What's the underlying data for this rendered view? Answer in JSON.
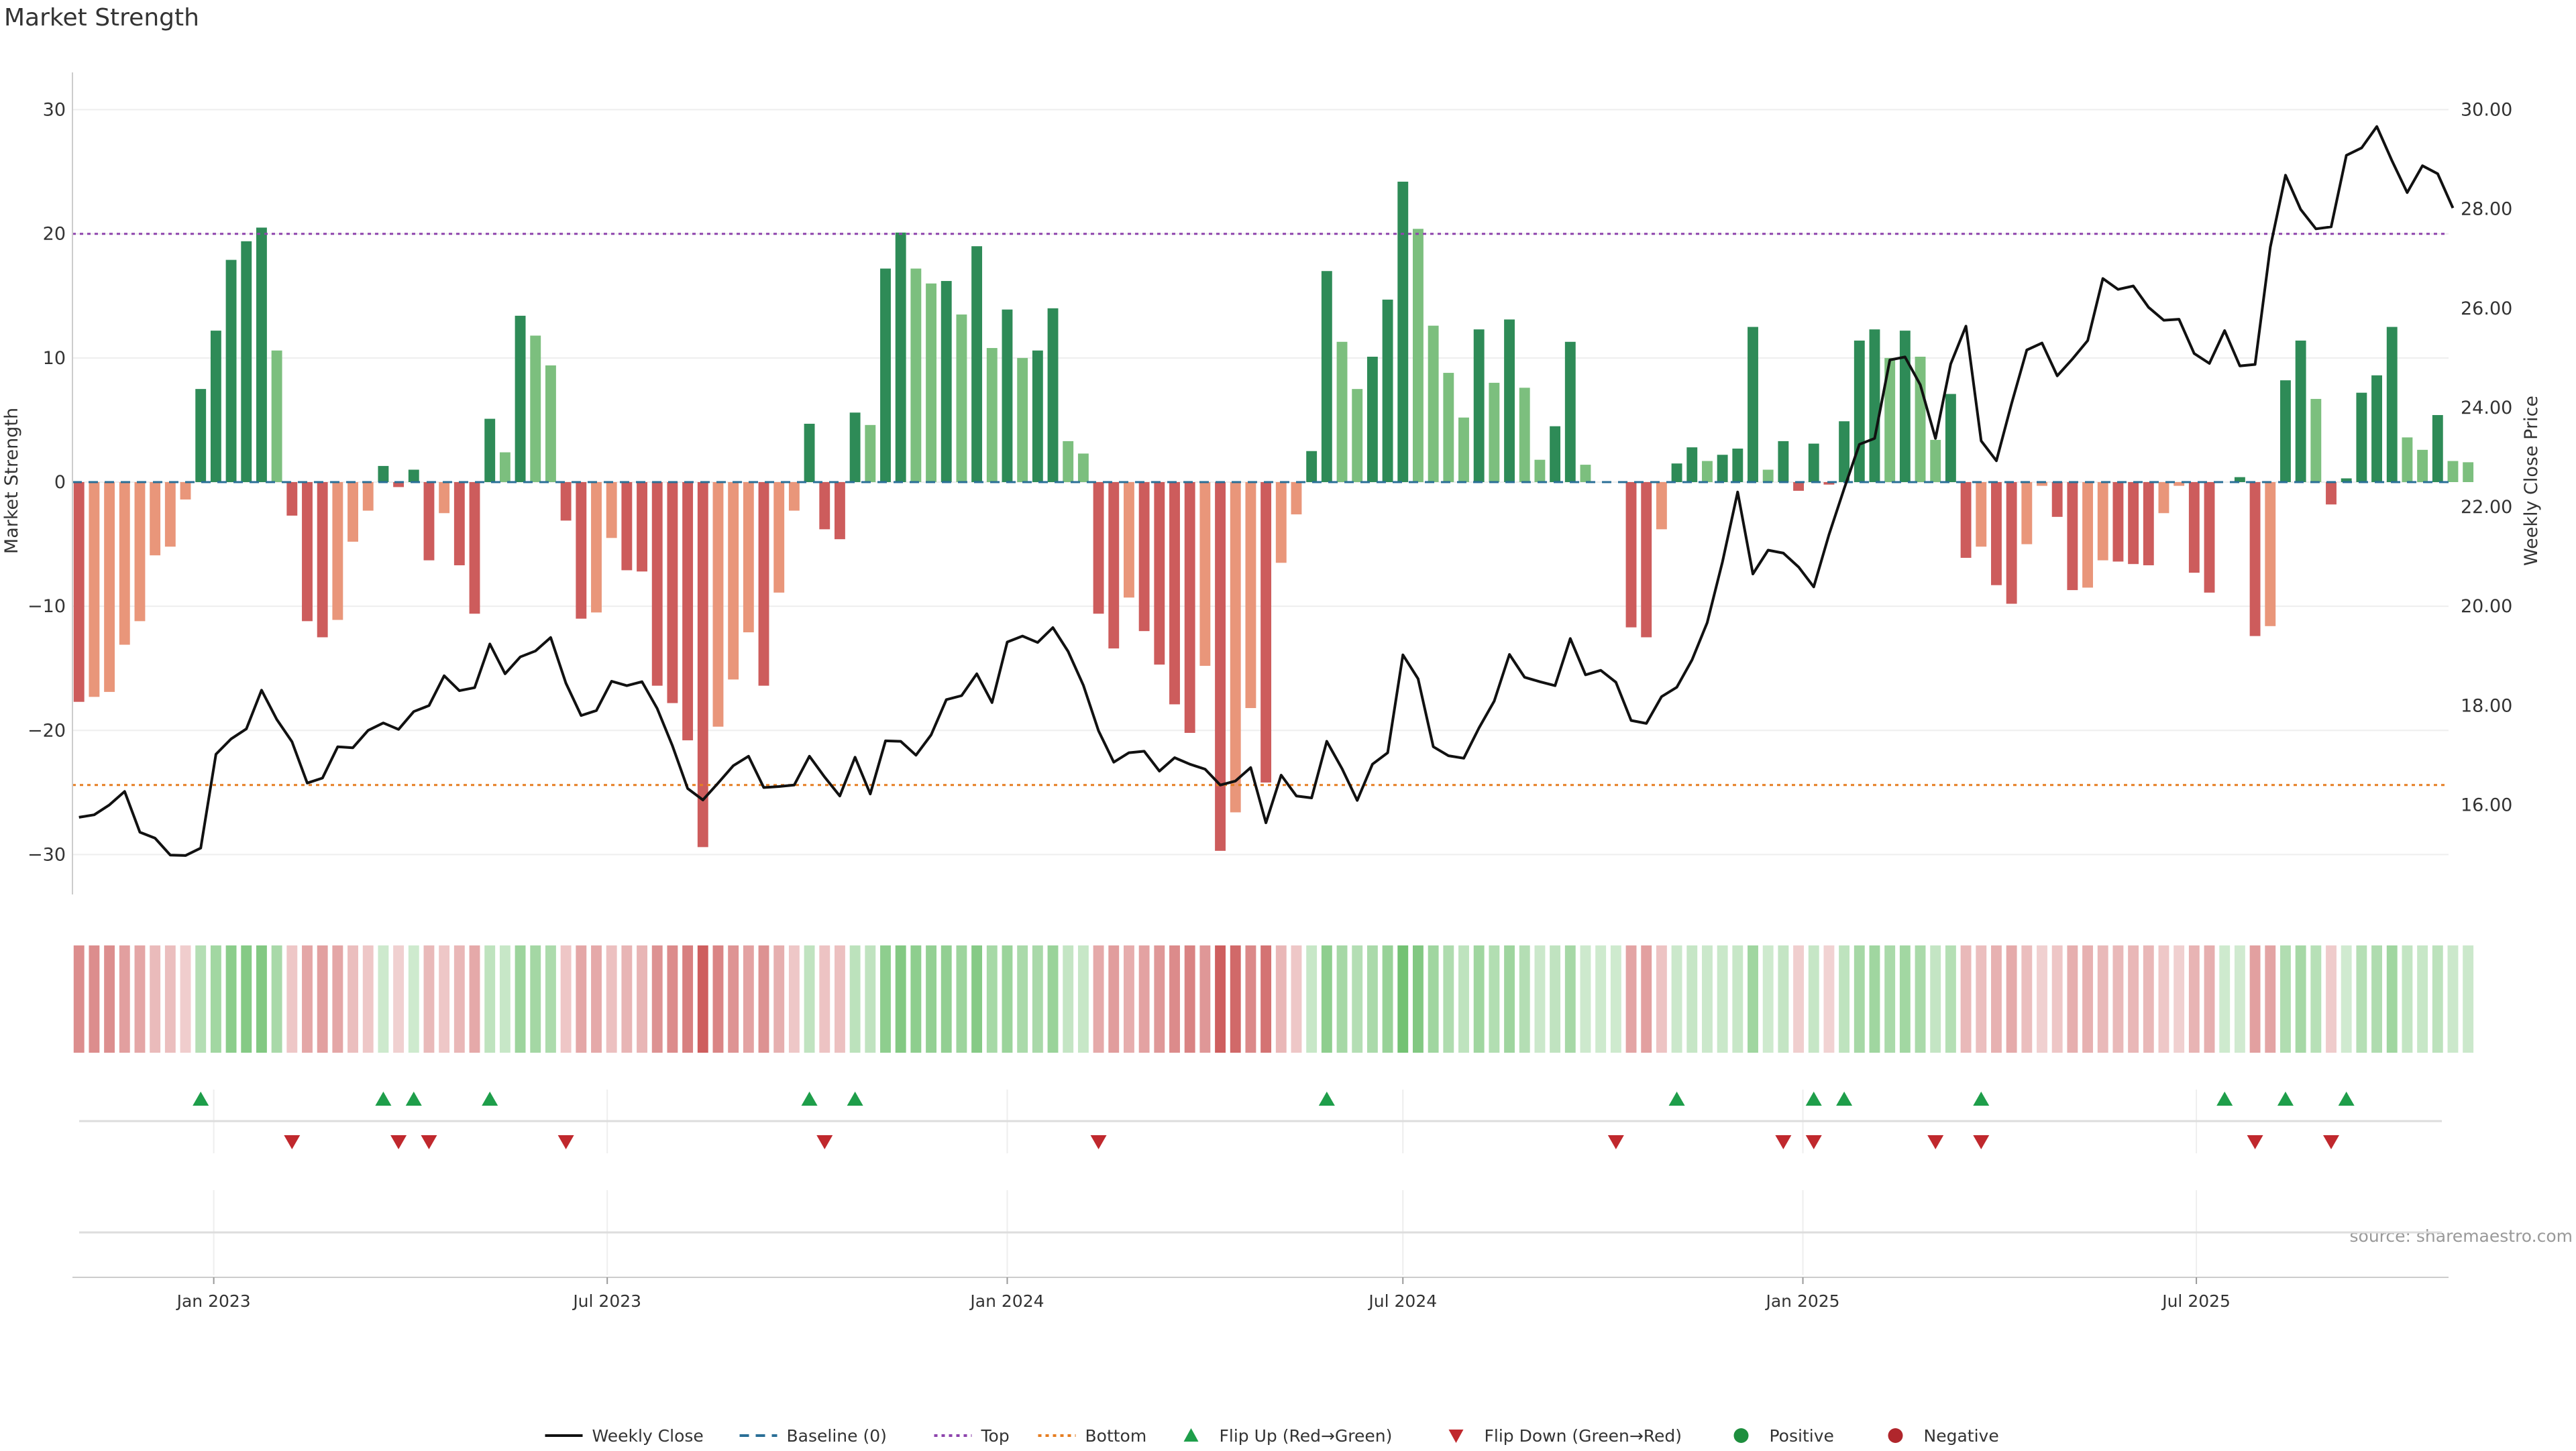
{
  "chart_data": {
    "type": "bar",
    "title": "Market Strength",
    "ylabel_left": "Market Strength",
    "ylabel_right": "Weekly Close Price",
    "ylim_left": [
      -33,
      33
    ],
    "ylim_right": [
      14.25,
      30.75
    ],
    "yticks_left": [
      30,
      20,
      10,
      0,
      -10,
      -20,
      -30
    ],
    "ytick_labels_left": [
      "30",
      "20",
      "10",
      "0",
      "−10",
      "−20",
      "−30"
    ],
    "yticks_right": [
      30,
      28,
      26,
      24,
      22,
      20,
      18,
      16
    ],
    "ytick_labels_right": [
      "30.00",
      "28.00",
      "26.00",
      "24.00",
      "22.00",
      "20.00",
      "18.00",
      "16.00"
    ],
    "start_date": "2022-10-31",
    "x_range_dates": [
      "2022-10-28",
      "2025-10-25"
    ],
    "xticks": [
      {
        "date": "2023-01-01",
        "label": "Jan 2023"
      },
      {
        "date": "2023-07-01",
        "label": "Jul 2023"
      },
      {
        "date": "2024-01-01",
        "label": "Jan 2024"
      },
      {
        "date": "2024-07-01",
        "label": "Jul 2024"
      },
      {
        "date": "2025-01-01",
        "label": "Jan 2025"
      },
      {
        "date": "2025-07-01",
        "label": "Jul 2025"
      }
    ],
    "top_level": 20,
    "bottom_level": -24.4,
    "strength": [
      -17.7,
      -17.3,
      -16.9,
      -13.1,
      -11.2,
      -5.9,
      -5.2,
      -1.4,
      7.5,
      12.2,
      17.9,
      19.4,
      20.5,
      10.6,
      -2.7,
      -11.2,
      -12.5,
      -11.1,
      -4.8,
      -2.3,
      1.3,
      -0.4,
      1.0,
      -6.3,
      -2.5,
      -6.7,
      -10.6,
      5.1,
      2.4,
      13.4,
      11.8,
      9.4,
      -3.1,
      -11.0,
      -10.5,
      -4.5,
      -7.1,
      -7.2,
      -16.4,
      -17.8,
      -20.8,
      -29.4,
      -19.7,
      -15.9,
      -12.1,
      -16.4,
      -8.9,
      -2.3,
      4.7,
      -3.8,
      -4.6,
      5.6,
      4.6,
      17.2,
      20.1,
      17.2,
      16.0,
      16.2,
      13.5,
      19.0,
      10.8,
      13.9,
      10.0,
      10.6,
      14.0,
      3.3,
      2.3,
      -10.6,
      -13.4,
      -9.3,
      -12.0,
      -14.7,
      -17.9,
      -20.2,
      -14.8,
      -29.7,
      -26.6,
      -18.2,
      -24.2,
      -6.5,
      -2.6,
      2.5,
      17.0,
      11.3,
      7.5,
      10.1,
      14.7,
      24.2,
      20.4,
      12.6,
      8.8,
      5.2,
      12.3,
      8.0,
      13.1,
      7.6,
      1.8,
      4.5,
      11.3,
      1.4,
      0.0,
      0.0,
      -11.7,
      -12.5,
      -3.8,
      1.5,
      2.8,
      1.7,
      2.2,
      2.7,
      12.5,
      1.0,
      3.3,
      -0.7,
      3.1,
      -0.2,
      4.9,
      11.4,
      12.3,
      10.0,
      12.2,
      10.1,
      3.4,
      7.1,
      -6.1,
      -5.2,
      -8.3,
      -9.8,
      -5.0,
      -0.3,
      -2.8,
      -8.7,
      -8.5,
      -6.3,
      -6.4,
      -6.6,
      -6.7,
      -2.5,
      -0.3,
      -7.3,
      -8.9,
      0.0,
      0.4,
      -12.4,
      -11.6,
      8.2,
      11.4,
      6.7,
      -1.8,
      0.3,
      7.2,
      8.6,
      12.5,
      3.6,
      2.6,
      5.4,
      1.7,
      1.6
    ],
    "weekly_close": [
      15.75,
      15.8,
      16.0,
      16.27,
      15.45,
      15.33,
      14.99,
      14.98,
      15.13,
      17.02,
      17.33,
      17.53,
      18.31,
      17.72,
      17.27,
      16.44,
      16.54,
      17.17,
      17.15,
      17.5,
      17.65,
      17.52,
      17.88,
      18.0,
      18.6,
      18.3,
      18.36,
      19.24,
      18.64,
      18.98,
      19.1,
      19.37,
      18.45,
      17.8,
      17.9,
      18.49,
      18.4,
      18.48,
      17.94,
      17.19,
      16.33,
      16.1,
      16.44,
      16.79,
      16.98,
      16.35,
      16.37,
      16.4,
      16.98,
      16.56,
      16.18,
      16.96,
      16.22,
      17.29,
      17.28,
      17.0,
      17.41,
      18.12,
      18.2,
      18.64,
      18.06,
      19.28,
      19.4,
      19.27,
      19.57,
      19.09,
      18.41,
      17.49,
      16.86,
      17.05,
      17.08,
      16.68,
      16.95,
      16.82,
      16.72,
      16.4,
      16.48,
      16.75,
      15.64,
      16.6,
      16.18,
      16.14,
      17.28,
      16.73,
      16.09,
      16.82,
      17.05,
      19.02,
      18.54,
      17.17,
      16.99,
      16.94,
      17.55,
      18.09,
      19.03,
      18.57,
      18.48,
      18.4,
      19.35,
      18.62,
      18.71,
      18.47,
      17.7,
      17.64,
      18.18,
      18.37,
      18.92,
      19.67,
      20.89,
      22.3,
      20.65,
      21.13,
      21.07,
      20.79,
      20.39,
      21.44,
      22.37,
      23.26,
      23.38,
      24.96,
      25.02,
      24.46,
      23.38,
      24.88,
      25.64,
      23.33,
      22.93,
      24.08,
      25.16,
      25.3,
      24.64,
      24.98,
      25.35,
      26.6,
      26.38,
      26.45,
      26.02,
      25.76,
      25.78,
      25.09,
      24.89,
      25.55,
      24.84,
      24.87,
      27.23,
      28.68,
      27.99,
      27.6,
      27.64,
      29.08,
      29.23,
      29.66,
      28.97,
      28.33,
      28.87,
      28.71,
      28.02
    ],
    "series": [
      {
        "name": "Weekly Close",
        "type": "line",
        "color": "#111111"
      },
      {
        "name": "Baseline (0)",
        "type": "line",
        "style": "dashed",
        "color": "#2a6f97",
        "value": 0
      },
      {
        "name": "Top",
        "type": "line",
        "style": "dotted",
        "color": "#8e44ad",
        "value": 20
      },
      {
        "name": "Bottom",
        "type": "line",
        "style": "dotted",
        "color": "#e67e22",
        "value": -24.4
      },
      {
        "name": "Flip Up (Red→Green)",
        "type": "marker",
        "marker": "triangle-up",
        "color": "#1e9e4a",
        "indices": [
          8,
          20,
          22,
          27,
          48,
          51,
          82,
          105,
          114,
          116,
          125,
          141,
          145,
          149
        ]
      },
      {
        "name": "Flip Down (Green→Red)",
        "type": "marker",
        "marker": "triangle-down",
        "color": "#c0282d",
        "indices": [
          14,
          21,
          23,
          32,
          49,
          67,
          101,
          112,
          114,
          122,
          125,
          143,
          148
        ]
      },
      {
        "name": "Positive",
        "type": "marker",
        "marker": "circle",
        "color": "#1e8e3e"
      },
      {
        "name": "Negative",
        "type": "marker",
        "marker": "circle",
        "color": "#b0262c"
      }
    ],
    "colors": {
      "strong_positive": "#2e8b57",
      "weak_positive": "#7cbf7e",
      "strong_negative": "#cd5c5c",
      "weak_negative": "#e9967a",
      "band_positive": "#5cb85c",
      "band_negative": "#cd5c5c",
      "grid": "#eeeeee",
      "axis": "#cccccc"
    },
    "legend_position": "bottom-center",
    "grid": true
  },
  "source_text": "source: sharemaestro.com"
}
